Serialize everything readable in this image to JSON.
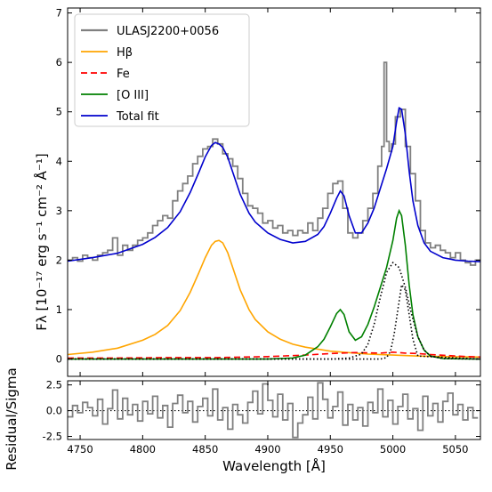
{
  "chart_data": [
    {
      "type": "line",
      "panel": "main",
      "title": "",
      "xlabel": "",
      "ylabel": "Fλ [10⁻¹⁷ erg s⁻¹ cm⁻² Å⁻¹]",
      "xlim": [
        4740,
        5070
      ],
      "ylim": [
        -0.35,
        7.1
      ],
      "yticks": [
        0,
        1,
        2,
        3,
        4,
        5,
        6,
        7
      ],
      "grid": false,
      "legend_placement": "top-left",
      "series": [
        {
          "name": "ULASJ2200+0056",
          "style": "steps",
          "color": "#808080",
          "x": [
            4742,
            4746,
            4750,
            4754,
            4758,
            4762,
            4766,
            4770,
            4774,
            4778,
            4782,
            4786,
            4790,
            4794,
            4798,
            4802,
            4806,
            4810,
            4814,
            4818,
            4822,
            4826,
            4830,
            4834,
            4838,
            4842,
            4846,
            4850,
            4854,
            4858,
            4862,
            4866,
            4870,
            4874,
            4878,
            4882,
            4886,
            4890,
            4894,
            4898,
            4902,
            4906,
            4910,
            4914,
            4918,
            4922,
            4926,
            4930,
            4934,
            4938,
            4942,
            4946,
            4950,
            4954,
            4958,
            4962,
            4966,
            4970,
            4974,
            4978,
            4982,
            4986,
            4990,
            4992,
            4994,
            4996,
            4998,
            5000,
            5004,
            5008,
            5012,
            5016,
            5020,
            5024,
            5028,
            5032,
            5036,
            5040,
            5044,
            5048,
            5052,
            5056,
            5060,
            5064,
            5068
          ],
          "y": [
            2.0,
            2.05,
            1.98,
            2.1,
            2.05,
            2.0,
            2.1,
            2.15,
            2.2,
            2.45,
            2.1,
            2.3,
            2.2,
            2.3,
            2.4,
            2.45,
            2.55,
            2.7,
            2.8,
            2.9,
            2.85,
            3.2,
            3.4,
            3.55,
            3.7,
            3.95,
            4.1,
            4.25,
            4.3,
            4.45,
            4.35,
            4.15,
            4.05,
            3.9,
            3.65,
            3.35,
            3.1,
            3.05,
            2.95,
            2.75,
            2.8,
            2.65,
            2.7,
            2.55,
            2.6,
            2.5,
            2.6,
            2.55,
            2.75,
            2.6,
            2.85,
            3.05,
            3.35,
            3.55,
            3.6,
            3.05,
            2.55,
            2.45,
            2.55,
            2.8,
            3.05,
            3.35,
            3.9,
            4.3,
            6.0,
            4.4,
            4.2,
            4.35,
            4.9,
            5.05,
            4.3,
            3.75,
            3.2,
            2.6,
            2.35,
            2.25,
            2.3,
            2.2,
            2.15,
            2.05,
            2.15,
            2.0,
            1.95,
            1.9,
            2.0
          ]
        },
        {
          "name": "Hβ",
          "style": "line",
          "color": "#ffa500",
          "x": [
            4740,
            4760,
            4780,
            4800,
            4810,
            4820,
            4830,
            4838,
            4845,
            4850,
            4855,
            4858,
            4861,
            4864,
            4868,
            4872,
            4878,
            4885,
            4890,
            4900,
            4910,
            4920,
            4930,
            4940,
            4950,
            4960,
            4980,
            5000,
            5020,
            5040,
            5070
          ],
          "y": [
            0.09,
            0.14,
            0.22,
            0.38,
            0.5,
            0.68,
            0.98,
            1.35,
            1.75,
            2.05,
            2.3,
            2.38,
            2.4,
            2.35,
            2.15,
            1.85,
            1.4,
            1.0,
            0.8,
            0.55,
            0.4,
            0.3,
            0.24,
            0.2,
            0.16,
            0.14,
            0.1,
            0.08,
            0.06,
            0.05,
            0.04
          ]
        },
        {
          "name": "Fe",
          "style": "dashed",
          "color": "#ff0000",
          "x": [
            4740,
            4780,
            4820,
            4860,
            4900,
            4930,
            4950,
            4970,
            4990,
            5000,
            5010,
            5020,
            5030,
            5045,
            5060,
            5070
          ],
          "y": [
            0.02,
            0.02,
            0.03,
            0.03,
            0.05,
            0.08,
            0.11,
            0.13,
            0.12,
            0.14,
            0.12,
            0.11,
            0.09,
            0.07,
            0.05,
            0.04
          ]
        },
        {
          "name": "[O III]",
          "style": "line",
          "color": "#008000",
          "x": [
            4740,
            4900,
            4920,
            4930,
            4940,
            4945,
            4950,
            4955,
            4958,
            4961,
            4965,
            4970,
            4975,
            4980,
            4985,
            4990,
            4995,
            5000,
            5003,
            5005,
            5007,
            5010,
            5013,
            5016,
            5020,
            5025,
            5030,
            5040,
            5070
          ],
          "y": [
            0,
            0,
            0.02,
            0.08,
            0.25,
            0.4,
            0.65,
            0.92,
            1.0,
            0.9,
            0.55,
            0.38,
            0.45,
            0.7,
            1.05,
            1.45,
            1.85,
            2.4,
            2.85,
            3.0,
            2.9,
            2.3,
            1.5,
            0.9,
            0.45,
            0.18,
            0.06,
            0.01,
            0
          ]
        },
        {
          "name": "Total fit",
          "style": "line",
          "color": "#0000cd",
          "x": [
            4740,
            4760,
            4780,
            4800,
            4810,
            4820,
            4830,
            4838,
            4845,
            4850,
            4855,
            4858,
            4861,
            4864,
            4868,
            4872,
            4878,
            4885,
            4890,
            4900,
            4910,
            4920,
            4930,
            4940,
            4945,
            4950,
            4955,
            4958,
            4961,
            4965,
            4970,
            4975,
            4980,
            4985,
            4990,
            4995,
            5000,
            5003,
            5005,
            5007,
            5010,
            5013,
            5016,
            5020,
            5025,
            5030,
            5040,
            5050,
            5060,
            5070
          ],
          "y": [
            1.98,
            2.05,
            2.14,
            2.32,
            2.46,
            2.66,
            2.98,
            3.37,
            3.78,
            4.09,
            4.32,
            4.38,
            4.35,
            4.28,
            4.08,
            3.78,
            3.33,
            2.95,
            2.77,
            2.55,
            2.42,
            2.35,
            2.38,
            2.52,
            2.68,
            2.95,
            3.25,
            3.4,
            3.3,
            2.9,
            2.55,
            2.55,
            2.75,
            3.05,
            3.45,
            3.85,
            4.3,
            4.8,
            5.08,
            5.05,
            4.55,
            3.8,
            3.2,
            2.7,
            2.35,
            2.18,
            2.05,
            2.0,
            1.98,
            1.97
          ]
        },
        {
          "name": "",
          "style": "dotted",
          "color": "#000000",
          "x": [
            4740,
            4950,
            4965,
            4975,
            4980,
            4985,
            4990,
            4995,
            5000,
            5005,
            5010,
            5015,
            5020,
            5025,
            5030,
            5040,
            5070
          ],
          "y": [
            0,
            0,
            0.02,
            0.1,
            0.3,
            0.7,
            1.25,
            1.75,
            1.95,
            1.85,
            1.45,
            0.9,
            0.45,
            0.18,
            0.06,
            0.01,
            0
          ]
        },
        {
          "name": "",
          "style": "dotted",
          "color": "#000000",
          "x": [
            4740,
            4990,
            4995,
            4998,
            5001,
            5004,
            5007,
            5010,
            5013,
            5016,
            5020,
            5070
          ],
          "y": [
            0,
            0,
            0.03,
            0.15,
            0.5,
            1.0,
            1.5,
            1.4,
            0.9,
            0.4,
            0.06,
            0
          ]
        }
      ]
    },
    {
      "type": "line",
      "panel": "residual",
      "title": "",
      "xlabel": "Wavelength [Å]",
      "ylabel": "Residual/Sigma",
      "xlim": [
        4740,
        5070
      ],
      "ylim": [
        -2.8,
        2.9
      ],
      "yticks": [
        -2.5,
        0.0,
        2.5
      ],
      "xticks": [
        4750,
        4800,
        4850,
        4900,
        4950,
        5000,
        5050
      ],
      "zero_line": "dotted",
      "series": [
        {
          "name": "",
          "style": "steps",
          "color": "#808080",
          "x": [
            4742,
            4746,
            4750,
            4754,
            4758,
            4762,
            4766,
            4770,
            4774,
            4778,
            4782,
            4786,
            4790,
            4794,
            4798,
            4802,
            4806,
            4810,
            4814,
            4818,
            4822,
            4826,
            4830,
            4834,
            4838,
            4842,
            4846,
            4850,
            4854,
            4858,
            4862,
            4866,
            4870,
            4874,
            4878,
            4882,
            4886,
            4890,
            4894,
            4898,
            4902,
            4906,
            4910,
            4914,
            4918,
            4922,
            4926,
            4930,
            4934,
            4938,
            4942,
            4946,
            4950,
            4954,
            4958,
            4962,
            4966,
            4970,
            4974,
            4978,
            4982,
            4986,
            4990,
            4994,
            4998,
            5002,
            5006,
            5010,
            5014,
            5018,
            5022,
            5026,
            5030,
            5034,
            5038,
            5042,
            5046,
            5050,
            5054,
            5058,
            5062,
            5066
          ],
          "y": [
            -0.6,
            0.5,
            -0.2,
            0.8,
            0.3,
            -0.5,
            1.1,
            -1.3,
            0.2,
            2.0,
            -0.8,
            1.2,
            -0.4,
            0.6,
            -1.0,
            0.9,
            -0.3,
            1.4,
            -0.7,
            0.5,
            -1.6,
            0.7,
            1.5,
            -0.2,
            0.9,
            -1.1,
            0.4,
            1.2,
            -0.5,
            2.1,
            -0.9,
            0.3,
            -1.8,
            0.6,
            -0.4,
            -1.2,
            0.8,
            1.9,
            -0.3,
            2.6,
            1.0,
            -0.6,
            1.6,
            -0.9,
            0.7,
            -2.6,
            -1.2,
            -0.4,
            1.3,
            -0.8,
            2.7,
            1.1,
            -0.7,
            0.4,
            1.8,
            -1.4,
            0.6,
            -0.9,
            0.3,
            -1.5,
            0.8,
            -0.2,
            2.1,
            -0.6,
            1.0,
            -1.3,
            0.4,
            1.6,
            -0.8,
            0.2,
            -1.9,
            1.4,
            -0.5,
            0.7,
            -1.1,
            0.9,
            1.7,
            -0.4,
            0.6,
            -0.9,
            0.3,
            -0.7
          ]
        }
      ]
    }
  ]
}
